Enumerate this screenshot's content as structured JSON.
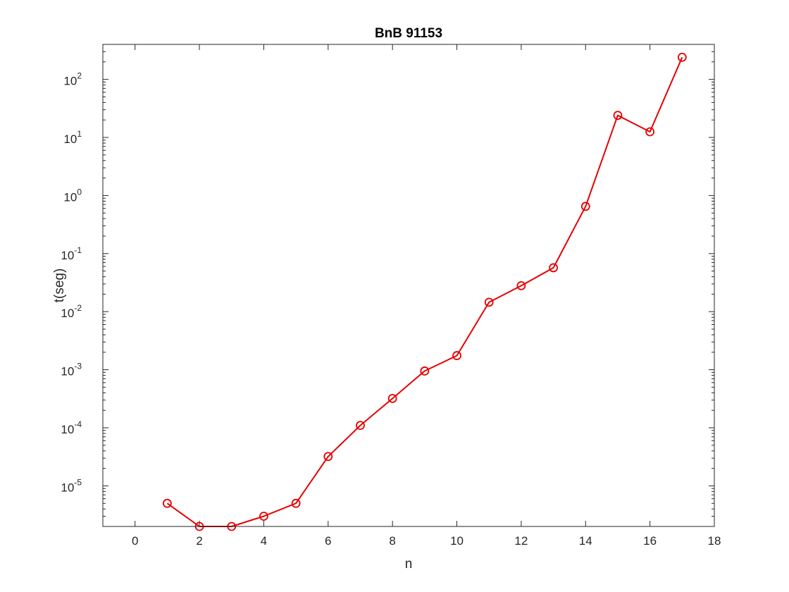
{
  "chart_data": {
    "type": "line",
    "title": "BnB 91153",
    "xlabel": "n",
    "ylabel": "t(seg)",
    "xlim": [
      -1,
      18
    ],
    "ylim": [
      2e-06,
      400
    ],
    "yscale": "log",
    "xticks": [
      0,
      2,
      4,
      6,
      8,
      10,
      12,
      14,
      16,
      18
    ],
    "yticks": [
      {
        "base": "10",
        "exp": "-5",
        "value": 1e-05
      },
      {
        "base": "10",
        "exp": "-4",
        "value": 0.0001
      },
      {
        "base": "10",
        "exp": "-3",
        "value": 0.001
      },
      {
        "base": "10",
        "exp": "-2",
        "value": 0.01
      },
      {
        "base": "10",
        "exp": "-1",
        "value": 0.1
      },
      {
        "base": "10",
        "exp": "0",
        "value": 1
      },
      {
        "base": "10",
        "exp": "1",
        "value": 10
      },
      {
        "base": "10",
        "exp": "2",
        "value": 100
      }
    ],
    "grid": false,
    "series": [
      {
        "color": "#e60000",
        "marker": "circle",
        "x": [
          1,
          2,
          3,
          4,
          5,
          6,
          7,
          8,
          9,
          10,
          11,
          12,
          13,
          14,
          15,
          16,
          17
        ],
        "y": [
          5e-06,
          2e-06,
          2e-06,
          3e-06,
          5e-06,
          3.2e-05,
          0.00011,
          0.00032,
          0.00095,
          0.00175,
          0.0145,
          0.028,
          0.057,
          0.65,
          24,
          12.5,
          240
        ]
      }
    ]
  }
}
